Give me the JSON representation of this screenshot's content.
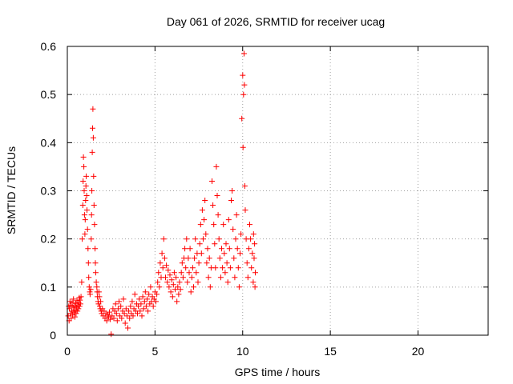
{
  "chart_data": {
    "type": "scatter",
    "title": "Day 061 of 2026, SRMTID for receiver ucag",
    "xlabel": "GPS time / hours",
    "ylabel": "SRMTID / TECUs",
    "xlim": [
      0,
      24
    ],
    "ylim": [
      0,
      0.6
    ],
    "xticks": [
      0,
      5,
      10,
      15,
      20
    ],
    "xtick_labels": [
      "0",
      "5",
      "10",
      "15",
      "20"
    ],
    "yticks": [
      0,
      0.1,
      0.2,
      0.3,
      0.4,
      0.5,
      0.6
    ],
    "ytick_labels": [
      "0",
      "0.1",
      "0.2",
      "0.3",
      "0.4",
      "0.5",
      "0.6"
    ],
    "grid": true,
    "marker": "+",
    "color": "#ff0000",
    "series": [
      {
        "name": "SRMTID",
        "points": [
          [
            0.05,
            0.04
          ],
          [
            0.08,
            0.06
          ],
          [
            0.1,
            0.03
          ],
          [
            0.12,
            0.055
          ],
          [
            0.15,
            0.07
          ],
          [
            0.18,
            0.045
          ],
          [
            0.2,
            0.062
          ],
          [
            0.22,
            0.035
          ],
          [
            0.25,
            0.05
          ],
          [
            0.28,
            0.068
          ],
          [
            0.3,
            0.042
          ],
          [
            0.33,
            0.058
          ],
          [
            0.35,
            0.075
          ],
          [
            0.38,
            0.048
          ],
          [
            0.4,
            0.06
          ],
          [
            0.43,
            0.038
          ],
          [
            0.45,
            0.052
          ],
          [
            0.48,
            0.066
          ],
          [
            0.5,
            0.045
          ],
          [
            0.53,
            0.058
          ],
          [
            0.55,
            0.072
          ],
          [
            0.58,
            0.05
          ],
          [
            0.6,
            0.063
          ],
          [
            0.63,
            0.055
          ],
          [
            0.65,
            0.068
          ],
          [
            0.68,
            0.078
          ],
          [
            0.7,
            0.06
          ],
          [
            0.72,
            0.073
          ],
          [
            0.75,
            0.065
          ],
          [
            0.78,
            0.08
          ],
          [
            0.82,
            0.11
          ],
          [
            0.85,
            0.2
          ],
          [
            0.88,
            0.27
          ],
          [
            0.9,
            0.32
          ],
          [
            0.92,
            0.37
          ],
          [
            0.94,
            0.35
          ],
          [
            0.96,
            0.3
          ],
          [
            0.98,
            0.25
          ],
          [
            1.0,
            0.21
          ],
          [
            1.02,
            0.24
          ],
          [
            1.04,
            0.28
          ],
          [
            1.06,
            0.31
          ],
          [
            1.08,
            0.33
          ],
          [
            1.1,
            0.29
          ],
          [
            1.12,
            0.26
          ],
          [
            1.15,
            0.22
          ],
          [
            1.18,
            0.18
          ],
          [
            1.2,
            0.15
          ],
          [
            1.22,
            0.12
          ],
          [
            1.25,
            0.1
          ],
          [
            1.28,
            0.09
          ],
          [
            1.3,
            0.085
          ],
          [
            1.33,
            0.095
          ],
          [
            1.36,
            0.2
          ],
          [
            1.38,
            0.25
          ],
          [
            1.4,
            0.3
          ],
          [
            1.42,
            0.38
          ],
          [
            1.44,
            0.43
          ],
          [
            1.46,
            0.47
          ],
          [
            1.48,
            0.41
          ],
          [
            1.5,
            0.33
          ],
          [
            1.52,
            0.27
          ],
          [
            1.55,
            0.23
          ],
          [
            1.58,
            0.18
          ],
          [
            1.6,
            0.15
          ],
          [
            1.62,
            0.13
          ],
          [
            1.65,
            0.11
          ],
          [
            1.68,
            0.1
          ],
          [
            1.7,
            0.09
          ],
          [
            1.72,
            0.08
          ],
          [
            1.75,
            0.07
          ],
          [
            1.78,
            0.065
          ],
          [
            1.8,
            0.09
          ],
          [
            1.83,
            0.08
          ],
          [
            1.85,
            0.06
          ],
          [
            1.88,
            0.055
          ],
          [
            1.9,
            0.07
          ],
          [
            1.93,
            0.05
          ],
          [
            1.96,
            0.045
          ],
          [
            2.0,
            0.055
          ],
          [
            2.05,
            0.04
          ],
          [
            2.1,
            0.05
          ],
          [
            2.15,
            0.035
          ],
          [
            2.2,
            0.045
          ],
          [
            2.25,
            0.03
          ],
          [
            2.3,
            0.042
          ],
          [
            2.35,
            0.038
          ],
          [
            2.4,
            0.048
          ],
          [
            2.45,
            0.033
          ],
          [
            2.5,
            0.002
          ],
          [
            2.55,
            0.04
          ],
          [
            2.6,
            0.055
          ],
          [
            2.65,
            0.035
          ],
          [
            2.7,
            0.05
          ],
          [
            2.75,
            0.065
          ],
          [
            2.8,
            0.045
          ],
          [
            2.85,
            0.03
          ],
          [
            2.9,
            0.055
          ],
          [
            2.95,
            0.07
          ],
          [
            3.0,
            0.04
          ],
          [
            3.05,
            0.06
          ],
          [
            3.1,
            0.035
          ],
          [
            3.15,
            0.05
          ],
          [
            3.2,
            0.075
          ],
          [
            3.25,
            0.045
          ],
          [
            3.3,
            0.025
          ],
          [
            3.35,
            0.055
          ],
          [
            3.4,
            0.04
          ],
          [
            3.45,
            0.015
          ],
          [
            3.5,
            0.05
          ],
          [
            3.55,
            0.035
          ],
          [
            3.6,
            0.06
          ],
          [
            3.65,
            0.045
          ],
          [
            3.7,
            0.07
          ],
          [
            3.75,
            0.04
          ],
          [
            3.8,
            0.055
          ],
          [
            3.85,
            0.085
          ],
          [
            3.9,
            0.05
          ],
          [
            3.95,
            0.065
          ],
          [
            4.0,
            0.045
          ],
          [
            4.05,
            0.06
          ],
          [
            4.1,
            0.075
          ],
          [
            4.15,
            0.05
          ],
          [
            4.2,
            0.065
          ],
          [
            4.25,
            0.04
          ],
          [
            4.3,
            0.08
          ],
          [
            4.35,
            0.055
          ],
          [
            4.4,
            0.07
          ],
          [
            4.45,
            0.09
          ],
          [
            4.5,
            0.06
          ],
          [
            4.55,
            0.075
          ],
          [
            4.6,
            0.05
          ],
          [
            4.65,
            0.085
          ],
          [
            4.7,
            0.065
          ],
          [
            4.75,
            0.1
          ],
          [
            4.8,
            0.07
          ],
          [
            4.85,
            0.08
          ],
          [
            4.9,
            0.06
          ],
          [
            4.95,
            0.075
          ],
          [
            5.0,
            0.09
          ],
          [
            5.05,
            0.07
          ],
          [
            5.1,
            0.085
          ],
          [
            5.15,
            0.11
          ],
          [
            5.2,
            0.13
          ],
          [
            5.25,
            0.1
          ],
          [
            5.3,
            0.15
          ],
          [
            5.35,
            0.12
          ],
          [
            5.4,
            0.17
          ],
          [
            5.45,
            0.14
          ],
          [
            5.5,
            0.2
          ],
          [
            5.55,
            0.16
          ],
          [
            5.6,
            0.12
          ],
          [
            5.65,
            0.145
          ],
          [
            5.7,
            0.11
          ],
          [
            5.75,
            0.135
          ],
          [
            5.8,
            0.1
          ],
          [
            5.85,
            0.125
          ],
          [
            5.9,
            0.09
          ],
          [
            5.95,
            0.115
          ],
          [
            6.0,
            0.08
          ],
          [
            6.05,
            0.105
          ],
          [
            6.1,
            0.13
          ],
          [
            6.15,
            0.095
          ],
          [
            6.2,
            0.12
          ],
          [
            6.25,
            0.07
          ],
          [
            6.3,
            0.1
          ],
          [
            6.35,
            0.085
          ],
          [
            6.4,
            0.11
          ],
          [
            6.45,
            0.095
          ],
          [
            6.5,
            0.13
          ],
          [
            6.55,
            0.15
          ],
          [
            6.6,
            0.12
          ],
          [
            6.65,
            0.16
          ],
          [
            6.7,
            0.18
          ],
          [
            6.75,
            0.14
          ],
          [
            6.8,
            0.2
          ],
          [
            6.85,
            0.11
          ],
          [
            6.9,
            0.16
          ],
          [
            6.95,
            0.13
          ],
          [
            7.0,
            0.18
          ],
          [
            7.05,
            0.09
          ],
          [
            7.1,
            0.12
          ],
          [
            7.15,
            0.14
          ],
          [
            7.2,
            0.1
          ],
          [
            7.25,
            0.16
          ],
          [
            7.3,
            0.2
          ],
          [
            7.35,
            0.13
          ],
          [
            7.4,
            0.17
          ],
          [
            7.45,
            0.11
          ],
          [
            7.5,
            0.15
          ],
          [
            7.55,
            0.19
          ],
          [
            7.6,
            0.23
          ],
          [
            7.65,
            0.17
          ],
          [
            7.7,
            0.26
          ],
          [
            7.75,
            0.2
          ],
          [
            7.8,
            0.24
          ],
          [
            7.85,
            0.28
          ],
          [
            7.9,
            0.21
          ],
          [
            7.95,
            0.15
          ],
          [
            8.0,
            0.18
          ],
          [
            8.05,
            0.12
          ],
          [
            8.1,
            0.16
          ],
          [
            8.15,
            0.1
          ],
          [
            8.2,
            0.14
          ],
          [
            8.25,
            0.32
          ],
          [
            8.3,
            0.27
          ],
          [
            8.35,
            0.23
          ],
          [
            8.4,
            0.19
          ],
          [
            8.45,
            0.14
          ],
          [
            8.5,
            0.35
          ],
          [
            8.55,
            0.29
          ],
          [
            8.6,
            0.25
          ],
          [
            8.65,
            0.2
          ],
          [
            8.7,
            0.16
          ],
          [
            8.75,
            0.12
          ],
          [
            8.8,
            0.18
          ],
          [
            8.85,
            0.14
          ],
          [
            8.9,
            0.23
          ],
          [
            8.95,
            0.17
          ],
          [
            9.0,
            0.13
          ],
          [
            9.05,
            0.19
          ],
          [
            9.1,
            0.15
          ],
          [
            9.15,
            0.11
          ],
          [
            9.2,
            0.24
          ],
          [
            9.25,
            0.18
          ],
          [
            9.3,
            0.14
          ],
          [
            9.35,
            0.28
          ],
          [
            9.4,
            0.3
          ],
          [
            9.45,
            0.22
          ],
          [
            9.5,
            0.16
          ],
          [
            9.55,
            0.12
          ],
          [
            9.6,
            0.2
          ],
          [
            9.65,
            0.25
          ],
          [
            9.7,
            0.18
          ],
          [
            9.75,
            0.14
          ],
          [
            9.8,
            0.1
          ],
          [
            9.85,
            0.17
          ],
          [
            9.9,
            0.21
          ],
          [
            9.95,
            0.45
          ],
          [
            10.0,
            0.54
          ],
          [
            10.02,
            0.39
          ],
          [
            10.05,
            0.5
          ],
          [
            10.08,
            0.585
          ],
          [
            10.1,
            0.52
          ],
          [
            10.12,
            0.31
          ],
          [
            10.15,
            0.26
          ],
          [
            10.2,
            0.2
          ],
          [
            10.25,
            0.15
          ],
          [
            10.3,
            0.12
          ],
          [
            10.35,
            0.18
          ],
          [
            10.4,
            0.23
          ],
          [
            10.45,
            0.2
          ],
          [
            10.5,
            0.14
          ],
          [
            10.55,
            0.17
          ],
          [
            10.6,
            0.11
          ],
          [
            10.62,
            0.21
          ],
          [
            10.65,
            0.16
          ],
          [
            10.68,
            0.19
          ],
          [
            10.7,
            0.1
          ],
          [
            10.72,
            0.13
          ]
        ]
      }
    ]
  }
}
